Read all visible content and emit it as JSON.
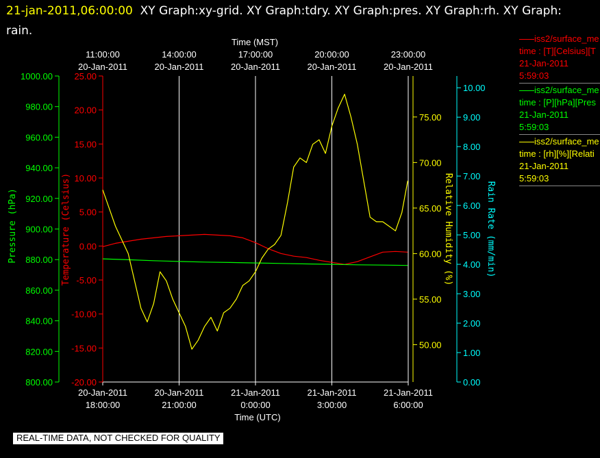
{
  "header": {
    "timestamp": "21-jan-2011,06:00:00",
    "title": "XY Graph:xy-grid.  XY Graph:tdry.  XY Graph:pres.  XY Graph:rh.  XY Graph: rain."
  },
  "legend": [
    {
      "name": "iss2/surface_me",
      "desc": "time : [T][Celsius][T",
      "date": "21-Jan-2011",
      "time": "5:59:03",
      "color": "#ff0000"
    },
    {
      "name": "iss2/surface_me",
      "desc": "time : [P][hPa][Pres",
      "date": "21-Jan-2011",
      "time": "5:59:03",
      "color": "#00ff00"
    },
    {
      "name": "iss2/surface_me",
      "desc": "time : [rh][%][Relati",
      "date": "21-Jan-2011",
      "time": "5:59:03",
      "color": "#ffff00"
    }
  ],
  "notice": "REAL-TIME DATA, NOT CHECKED FOR QUALITY",
  "chart_data": {
    "type": "line",
    "x_top_title": "Time (MST)",
    "x_bottom_title": "Time (UTC)",
    "x_range_hours_utc": [
      18,
      30
    ],
    "x_ticks_top": [
      {
        "hour": 18,
        "time": "11:00:00",
        "date": "20-Jan-2011"
      },
      {
        "hour": 21,
        "time": "14:00:00",
        "date": "20-Jan-2011"
      },
      {
        "hour": 24,
        "time": "17:00:00",
        "date": "20-Jan-2011"
      },
      {
        "hour": 27,
        "time": "20:00:00",
        "date": "20-Jan-2011"
      },
      {
        "hour": 30,
        "time": "23:00:00",
        "date": "20-Jan-2011"
      }
    ],
    "x_ticks_bottom": [
      {
        "hour": 18,
        "date": "20-Jan-2011",
        "time": "18:00:00"
      },
      {
        "hour": 21,
        "date": "20-Jan-2011",
        "time": "21:00:00"
      },
      {
        "hour": 24,
        "date": "21-Jan-2011",
        "time": "0:00:00"
      },
      {
        "hour": 27,
        "date": "21-Jan-2011",
        "time": "3:00:00"
      },
      {
        "hour": 30,
        "date": "21-Jan-2011",
        "time": "6:00:00"
      }
    ],
    "axes": {
      "pressure": {
        "label": "Pressure (hPa)",
        "range": [
          800,
          1000
        ],
        "ticks": [
          "800.00",
          "820.00",
          "840.00",
          "860.00",
          "880.00",
          "900.00",
          "920.00",
          "940.00",
          "960.00",
          "980.00",
          "1000.00"
        ],
        "color": "#00ff00"
      },
      "temperature": {
        "label": "Temperature (Celsius)",
        "range": [
          -20,
          25
        ],
        "ticks": [
          "-20.00",
          "-15.00",
          "-10.00",
          "-5.00",
          "0.00",
          "5.00",
          "10.00",
          "15.00",
          "20.00",
          "25.00"
        ],
        "color": "#ff0000"
      },
      "humidity": {
        "label": "Relative Humidity (%)",
        "range": [
          45.9,
          79.5
        ],
        "ticks": [
          "50.00",
          "55.00",
          "60.00",
          "65.00",
          "70.00",
          "75.00"
        ],
        "color": "#ffff00"
      },
      "rain": {
        "label": "Rain Rate (mm/min)",
        "range": [
          0,
          10.4
        ],
        "ticks": [
          "0.00",
          "1.00",
          "2.00",
          "3.00",
          "4.00",
          "5.00",
          "6.00",
          "7.00",
          "8.00",
          "9.00",
          "10.00"
        ],
        "color": "#00ffff"
      }
    },
    "series": [
      {
        "name": "iss2/surface_me time : [T][Celsius]",
        "axis": "temperature",
        "color": "#ff0000",
        "x": [
          18,
          18.5,
          19,
          19.5,
          20,
          20.5,
          21,
          21.5,
          22,
          22.5,
          23,
          23.5,
          24,
          24.5,
          25,
          25.5,
          26,
          26.5,
          27,
          27.5,
          28,
          28.5,
          29,
          29.5,
          29.98
        ],
        "values": [
          -0.1,
          0.4,
          0.7,
          1.0,
          1.2,
          1.4,
          1.5,
          1.6,
          1.7,
          1.6,
          1.5,
          1.2,
          0.5,
          -0.4,
          -1.1,
          -1.5,
          -1.7,
          -2.1,
          -2.4,
          -2.7,
          -2.3,
          -1.6,
          -0.9,
          -0.8,
          -0.9
        ]
      },
      {
        "name": "iss2/surface_me time : [P][hPa]",
        "axis": "pressure",
        "color": "#00ff00",
        "x": [
          18,
          19,
          20,
          21,
          22,
          23,
          24,
          25,
          26,
          27,
          28,
          29,
          29.98
        ],
        "values": [
          880.5,
          879.9,
          879.3,
          878.8,
          878.4,
          878.1,
          877.8,
          877.5,
          877.2,
          876.9,
          876.6,
          876.4,
          876.2
        ]
      },
      {
        "name": "iss2/surface_me time : [rh][%]",
        "axis": "humidity",
        "color": "#ffff00",
        "x": [
          18,
          18.25,
          18.5,
          18.75,
          19,
          19.25,
          19.5,
          19.75,
          20,
          20.25,
          20.5,
          20.75,
          21,
          21.25,
          21.5,
          21.75,
          22,
          22.25,
          22.5,
          22.75,
          23,
          23.25,
          23.5,
          23.75,
          24,
          24.25,
          24.5,
          24.75,
          25,
          25.25,
          25.5,
          25.75,
          26,
          26.25,
          26.5,
          26.75,
          27,
          27.25,
          27.5,
          27.75,
          28,
          28.25,
          28.5,
          28.75,
          29,
          29.25,
          29.5,
          29.75,
          29.98
        ],
        "values": [
          67,
          65,
          63,
          61.5,
          60,
          57,
          54,
          52.5,
          54.5,
          58,
          57,
          55,
          53.5,
          52,
          49.5,
          50.5,
          52,
          53,
          51.5,
          53.5,
          54,
          55,
          56.5,
          57,
          58,
          59.5,
          60.5,
          61,
          62,
          65.5,
          69.5,
          70.5,
          70,
          72,
          72.5,
          71,
          74,
          76,
          77.5,
          75,
          72,
          68,
          64,
          63.5,
          63.5,
          63,
          62.5,
          64.5,
          68
        ]
      }
    ]
  }
}
